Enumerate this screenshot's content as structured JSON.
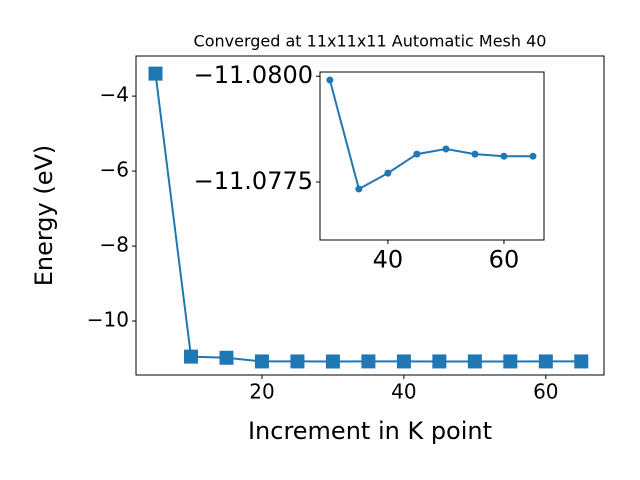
{
  "chart_data": [
    {
      "type": "line",
      "title": "Converged at 11x11x11 Automatic Mesh 40",
      "x_label": "Increment in K point",
      "y_label": "Energy (eV)",
      "x": [
        5,
        10,
        15,
        20,
        25,
        30,
        35,
        40,
        45,
        50,
        55,
        60,
        65
      ],
      "series": [
        {
          "color": "#1f77b4",
          "marker": "square",
          "values": [
            -3.4,
            -10.95,
            -10.98,
            -11.078,
            -11.078,
            -11.0799,
            -11.0773,
            -11.0777,
            -11.0782,
            -11.0783,
            -11.0782,
            -11.0781,
            -11.0781
          ]
        }
      ],
      "xlim": [
        2.25,
        68.2
      ],
      "ylim": [
        -11.44,
        -2.93
      ],
      "xticks": [
        20,
        40,
        60
      ],
      "yticks": [
        {
          "value": -4,
          "label": "−4"
        },
        {
          "value": -6,
          "label": "−6"
        },
        {
          "value": -8,
          "label": "−8"
        },
        {
          "value": -10,
          "label": "−10"
        }
      ]
    },
    {
      "type": "line",
      "x": [
        30,
        35,
        40,
        45,
        50,
        55,
        60,
        65
      ],
      "series": [
        {
          "color": "#1f77b4",
          "marker": "circle",
          "values": [
            -11.07991,
            -11.077335,
            -11.07771,
            -11.07816,
            -11.07828,
            -11.07816,
            -11.07811,
            -11.07811
          ]
        }
      ],
      "xlim": [
        28.3,
        66.9
      ],
      "ylim": [
        -11.07613,
        -11.0801
      ],
      "xticks": [
        40,
        60
      ],
      "yticks": [
        {
          "value": -11.08,
          "label": "−11.0800"
        },
        {
          "value": -11.0775,
          "label": "−11.0775"
        }
      ]
    }
  ]
}
